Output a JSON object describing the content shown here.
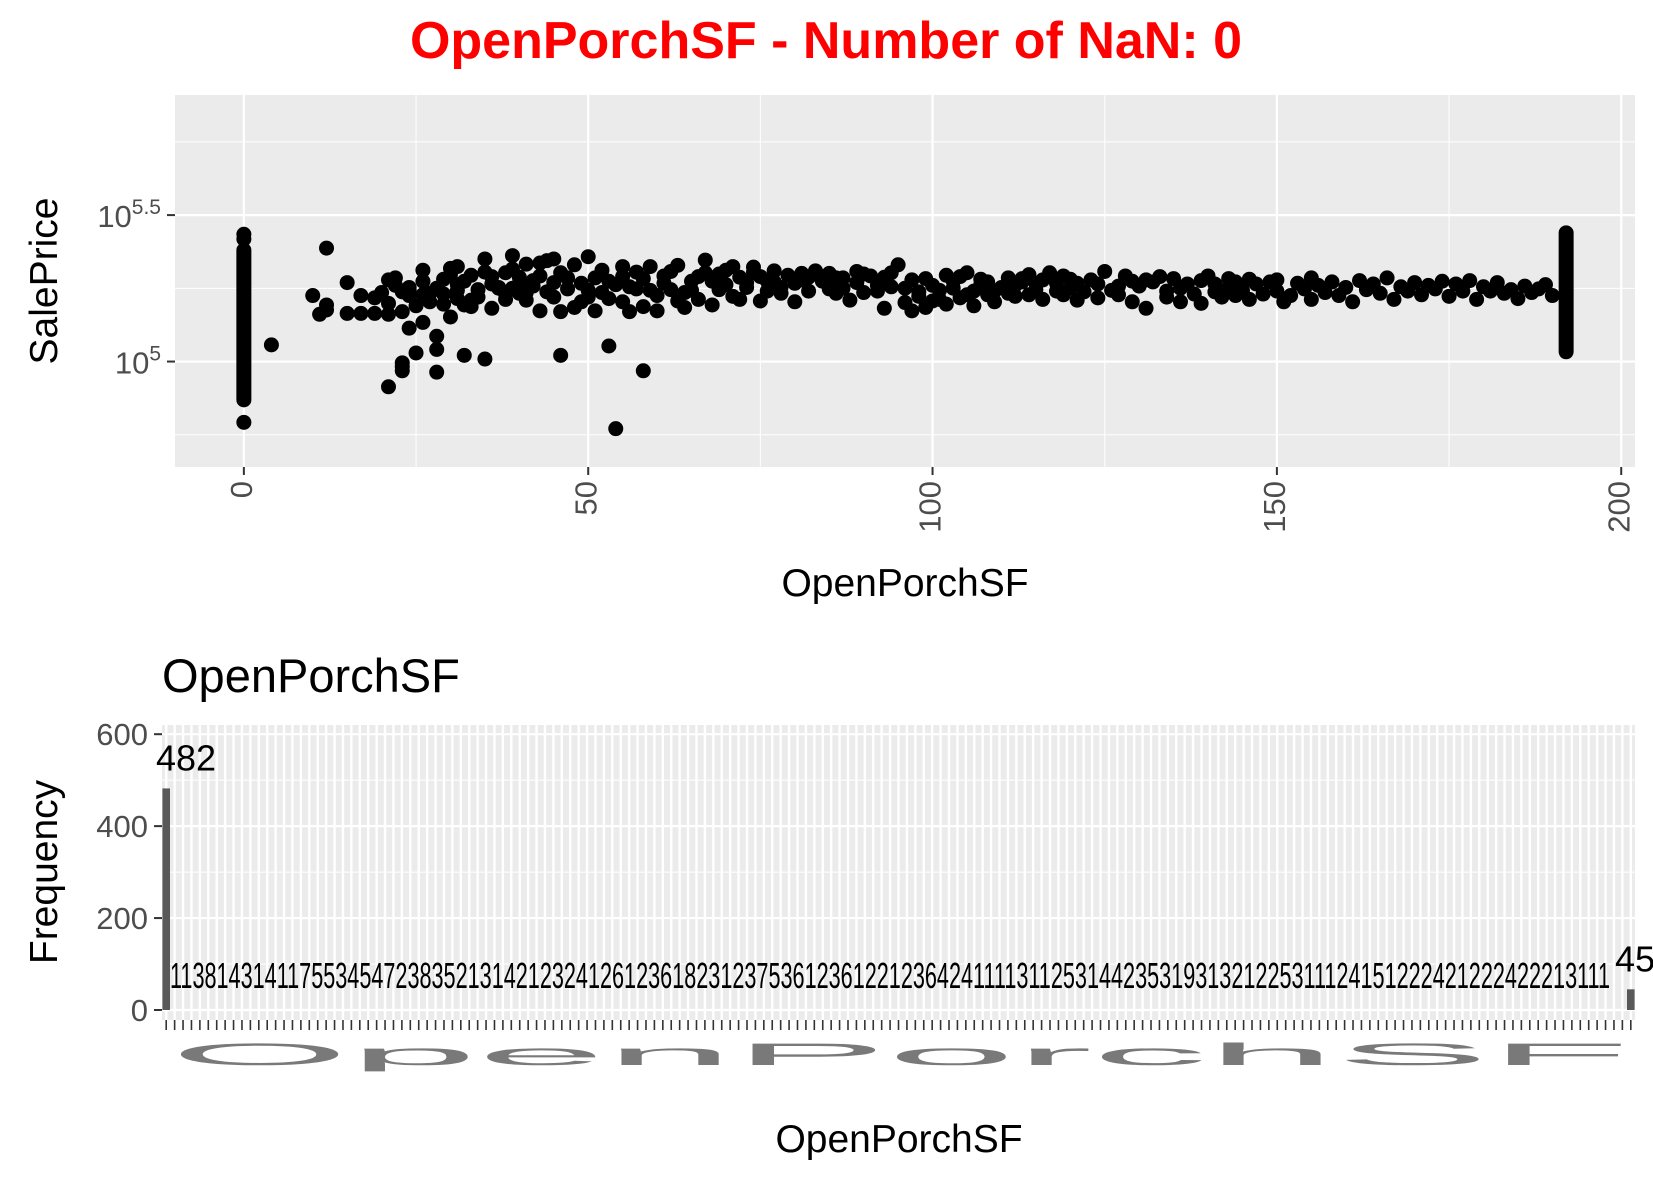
{
  "title": "OpenPorchSF - Number of NaN: 0",
  "chart_data": [
    {
      "type": "scatter",
      "xlabel": "OpenPorchSF",
      "ylabel": "SalePrice",
      "xlim": [
        -10,
        202
      ],
      "ylim_log10": [
        4.64,
        5.91
      ],
      "y_scale": "log10",
      "x_ticks": [
        "0",
        "50",
        "100",
        "150",
        "200"
      ],
      "y_tick_base": "10",
      "y_ticks": [
        {
          "value": 100000,
          "exponent": "5"
        },
        {
          "value": 316228,
          "exponent": "5.5"
        }
      ],
      "grid": true,
      "columns": [
        {
          "x": 0,
          "y_min": 74000,
          "y_max": 240000
        },
        {
          "x": 192,
          "y_min": 108000,
          "y_max": 275000
        }
      ],
      "points": [
        [
          0,
          62000
        ],
        [
          0,
          272000
        ],
        [
          0,
          262000
        ],
        [
          4,
          114000
        ],
        [
          10,
          168000
        ],
        [
          11,
          145000
        ],
        [
          12,
          156000
        ],
        [
          12,
          150000
        ],
        [
          12,
          244000
        ],
        [
          15,
          146000
        ],
        [
          15,
          186000
        ],
        [
          17,
          146000
        ],
        [
          17,
          168000
        ],
        [
          19,
          165000
        ],
        [
          19,
          146000
        ],
        [
          20,
          172000
        ],
        [
          21,
          82000
        ],
        [
          21,
          145000
        ],
        [
          21,
          158000
        ],
        [
          21,
          190000
        ],
        [
          22,
          193000
        ],
        [
          22,
          182000
        ],
        [
          23,
          173000
        ],
        [
          23,
          93000
        ],
        [
          23,
          96000
        ],
        [
          23,
          99000
        ],
        [
          23,
          148000
        ],
        [
          24,
          168000
        ],
        [
          24,
          176000
        ],
        [
          24,
          130000
        ],
        [
          24,
          179000
        ],
        [
          25,
          107000
        ],
        [
          25,
          155000
        ],
        [
          26,
          136000
        ],
        [
          26,
          205000
        ],
        [
          26,
          169000
        ],
        [
          26,
          188000
        ],
        [
          27,
          171000
        ],
        [
          27,
          160000
        ],
        [
          28,
          92000
        ],
        [
          28,
          110000
        ],
        [
          28,
          122000
        ],
        [
          28,
          178000
        ],
        [
          29,
          170000
        ],
        [
          29,
          191000
        ],
        [
          29,
          157000
        ],
        [
          30,
          142000
        ],
        [
          30,
          198000
        ],
        [
          30,
          208000
        ],
        [
          31,
          164000
        ],
        [
          31,
          175000
        ],
        [
          31,
          183000
        ],
        [
          31,
          211000
        ],
        [
          32,
          105000
        ],
        [
          32,
          156000
        ],
        [
          32,
          188000
        ],
        [
          33,
          154000
        ],
        [
          33,
          162000
        ],
        [
          33,
          197000
        ],
        [
          34,
          176000
        ],
        [
          34,
          166000
        ],
        [
          35,
          202000
        ],
        [
          35,
          224000
        ],
        [
          35,
          102000
        ],
        [
          36,
          195000
        ],
        [
          36,
          152000
        ],
        [
          36,
          184000
        ],
        [
          37,
          178000
        ],
        [
          37,
          179000
        ],
        [
          38,
          170000
        ],
        [
          38,
          163000
        ],
        [
          38,
          201000
        ],
        [
          39,
          178000
        ],
        [
          39,
          230000
        ],
        [
          39,
          207000
        ],
        [
          40,
          171000
        ],
        [
          40,
          185000
        ],
        [
          40,
          194000
        ],
        [
          41,
          162000
        ],
        [
          41,
          215000
        ],
        [
          41,
          172000
        ],
        [
          42,
          181000
        ],
        [
          42,
          189000
        ],
        [
          43,
          196000
        ],
        [
          43,
          149000
        ],
        [
          43,
          217000
        ],
        [
          44,
          173000
        ],
        [
          44,
          221000
        ],
        [
          45,
          166000
        ],
        [
          45,
          186000
        ],
        [
          45,
          224000
        ],
        [
          46,
          105000
        ],
        [
          46,
          201000
        ],
        [
          46,
          148000
        ],
        [
          47,
          177000
        ],
        [
          47,
          193000
        ],
        [
          48,
          153000
        ],
        [
          48,
          214000
        ],
        [
          49,
          185000
        ],
        [
          49,
          160000
        ],
        [
          50,
          175000
        ],
        [
          50,
          166000
        ],
        [
          50,
          228000
        ],
        [
          51,
          149000
        ],
        [
          51,
          193000
        ],
        [
          52,
          205000
        ],
        [
          52,
          172000
        ],
        [
          53,
          188000
        ],
        [
          53,
          113000
        ],
        [
          53,
          164000
        ],
        [
          54,
          183000
        ],
        [
          54,
          59000
        ],
        [
          55,
          160000
        ],
        [
          55,
          195000
        ],
        [
          55,
          211000
        ],
        [
          56,
          148000
        ],
        [
          56,
          180000
        ],
        [
          57,
          177000
        ],
        [
          57,
          202000
        ],
        [
          58,
          192000
        ],
        [
          58,
          93000
        ],
        [
          58,
          154000
        ],
        [
          59,
          175000
        ],
        [
          59,
          211000
        ],
        [
          60,
          168000
        ],
        [
          60,
          149000
        ],
        [
          61,
          185000
        ],
        [
          61,
          196000
        ],
        [
          62,
          176000
        ],
        [
          62,
          203000
        ],
        [
          63,
          161000
        ],
        [
          63,
          213000
        ],
        [
          64,
          172000
        ],
        [
          64,
          153000
        ],
        [
          65,
          188000
        ],
        [
          65,
          175000
        ],
        [
          66,
          195000
        ],
        [
          66,
          163000
        ],
        [
          67,
          222000
        ],
        [
          67,
          201000
        ],
        [
          68,
          188000
        ],
        [
          68,
          156000
        ],
        [
          69,
          176000
        ],
        [
          69,
          199000
        ],
        [
          70,
          205000
        ],
        [
          70,
          183000
        ],
        [
          71,
          167000
        ],
        [
          71,
          211000
        ],
        [
          72,
          163000
        ],
        [
          72,
          194000
        ],
        [
          73,
          186000
        ],
        [
          73,
          179000
        ],
        [
          74,
          202000
        ],
        [
          74,
          210000
        ],
        [
          75,
          195000
        ],
        [
          75,
          161000
        ],
        [
          76,
          188000
        ],
        [
          76,
          174000
        ],
        [
          77,
          187000
        ],
        [
          77,
          204000
        ],
        [
          78,
          171000
        ],
        [
          78,
          179000
        ],
        [
          79,
          197000
        ],
        [
          80,
          185000
        ],
        [
          80,
          160000
        ],
        [
          81,
          200000
        ],
        [
          81,
          190000
        ],
        [
          82,
          194000
        ],
        [
          82,
          174000
        ],
        [
          83,
          204000
        ],
        [
          84,
          195000
        ],
        [
          84,
          188000
        ],
        [
          85,
          200000
        ],
        [
          85,
          177000
        ],
        [
          86,
          171000
        ],
        [
          86,
          193000
        ],
        [
          87,
          193000
        ],
        [
          87,
          178000
        ],
        [
          88,
          162000
        ],
        [
          89,
          203000
        ],
        [
          89,
          186000
        ],
        [
          90,
          172000
        ],
        [
          90,
          199000
        ],
        [
          91,
          196000
        ],
        [
          92,
          182000
        ],
        [
          92,
          174000
        ],
        [
          93,
          152000
        ],
        [
          93,
          194000
        ],
        [
          94,
          201000
        ],
        [
          94,
          180000
        ],
        [
          95,
          214000
        ],
        [
          96,
          159000
        ],
        [
          96,
          178000
        ],
        [
          97,
          190000
        ],
        [
          97,
          149000
        ],
        [
          98,
          167000
        ],
        [
          98,
          173000
        ],
        [
          99,
          192000
        ],
        [
          99,
          153000
        ],
        [
          100,
          182000
        ],
        [
          100,
          161000
        ],
        [
          101,
          175000
        ],
        [
          101,
          163000
        ],
        [
          102,
          197000
        ],
        [
          102,
          157000
        ],
        [
          103,
          188000
        ],
        [
          103,
          178000
        ],
        [
          104,
          195000
        ],
        [
          104,
          165000
        ],
        [
          105,
          169000
        ],
        [
          105,
          201000
        ],
        [
          106,
          174000
        ],
        [
          106,
          155000
        ],
        [
          107,
          183000
        ],
        [
          107,
          191000
        ],
        [
          108,
          169000
        ],
        [
          108,
          187000
        ],
        [
          109,
          174000
        ],
        [
          109,
          160000
        ],
        [
          110,
          179000
        ],
        [
          111,
          193000
        ],
        [
          111,
          171000
        ],
        [
          112,
          167000
        ],
        [
          112,
          182000
        ],
        [
          113,
          187000
        ],
        [
          113,
          192000
        ],
        [
          114,
          198000
        ],
        [
          114,
          169000
        ],
        [
          115,
          185000
        ],
        [
          115,
          176000
        ],
        [
          116,
          190000
        ],
        [
          116,
          163000
        ],
        [
          117,
          201000
        ],
        [
          118,
          174000
        ],
        [
          118,
          185000
        ],
        [
          119,
          169000
        ],
        [
          119,
          196000
        ],
        [
          120,
          178000
        ],
        [
          120,
          191000
        ],
        [
          121,
          162000
        ],
        [
          121,
          185000
        ],
        [
          122,
          173000
        ],
        [
          123,
          190000
        ],
        [
          124,
          184000
        ],
        [
          124,
          165000
        ],
        [
          125,
          203000
        ],
        [
          126,
          175000
        ],
        [
          127,
          169000
        ],
        [
          127,
          181000
        ],
        [
          128,
          196000
        ],
        [
          129,
          160000
        ],
        [
          129,
          188000
        ],
        [
          130,
          181000
        ],
        [
          131,
          190000
        ],
        [
          131,
          152000
        ],
        [
          132,
          187000
        ],
        [
          133,
          195000
        ],
        [
          134,
          174000
        ],
        [
          134,
          166000
        ],
        [
          135,
          192000
        ],
        [
          136,
          160000
        ],
        [
          136,
          178000
        ],
        [
          137,
          184000
        ],
        [
          138,
          170000
        ],
        [
          139,
          189000
        ],
        [
          139,
          158000
        ],
        [
          140,
          196000
        ],
        [
          141,
          173000
        ],
        [
          141,
          184000
        ],
        [
          142,
          166000
        ],
        [
          143,
          192000
        ],
        [
          143,
          179000
        ],
        [
          144,
          168000
        ],
        [
          144,
          187000
        ],
        [
          145,
          175000
        ],
        [
          146,
          191000
        ],
        [
          146,
          163000
        ],
        [
          147,
          184000
        ],
        [
          148,
          170000
        ],
        [
          149,
          187000
        ],
        [
          150,
          174000
        ],
        [
          150,
          190000
        ],
        [
          151,
          160000
        ],
        [
          152,
          168000
        ],
        [
          153,
          185000
        ],
        [
          154,
          177000
        ],
        [
          155,
          193000
        ],
        [
          155,
          163000
        ],
        [
          156,
          182000
        ],
        [
          157,
          172000
        ],
        [
          158,
          187000
        ],
        [
          159,
          168000
        ],
        [
          160,
          179000
        ],
        [
          161,
          160000
        ],
        [
          162,
          189000
        ],
        [
          163,
          176000
        ],
        [
          164,
          184000
        ],
        [
          165,
          171000
        ],
        [
          166,
          193000
        ],
        [
          167,
          163000
        ],
        [
          168,
          180000
        ],
        [
          169,
          174000
        ],
        [
          170,
          186000
        ],
        [
          171,
          169000
        ],
        [
          172,
          182000
        ],
        [
          173,
          177000
        ],
        [
          174,
          188000
        ],
        [
          175,
          167000
        ],
        [
          176,
          184000
        ],
        [
          177,
          174000
        ],
        [
          178,
          189000
        ],
        [
          179,
          163000
        ],
        [
          180,
          180000
        ],
        [
          181,
          174000
        ],
        [
          182,
          186000
        ],
        [
          183,
          171000
        ],
        [
          184,
          176000
        ],
        [
          185,
          164000
        ],
        [
          186,
          181000
        ],
        [
          187,
          172000
        ],
        [
          188,
          177000
        ],
        [
          189,
          183000
        ],
        [
          190,
          168000
        ]
      ]
    },
    {
      "type": "bar",
      "title": "OpenPorchSF",
      "xlabel": "OpenPorchSF",
      "ylabel": "Frequency",
      "ylim": [
        0,
        620
      ],
      "y_ticks": [
        "0",
        "200",
        "400",
        "600"
      ],
      "categories_count": 175,
      "bars": [
        {
          "index": 0,
          "value": 482,
          "label": "482"
        },
        {
          "index": 174,
          "value": 45,
          "label": "45"
        }
      ],
      "small_counts_text": "1138143141175534547238352131421232412612361823123753612361221236424111131125314423531931321225311124151222421222422213111",
      "x_tick_labels_text": "OpenPorchSF"
    }
  ]
}
